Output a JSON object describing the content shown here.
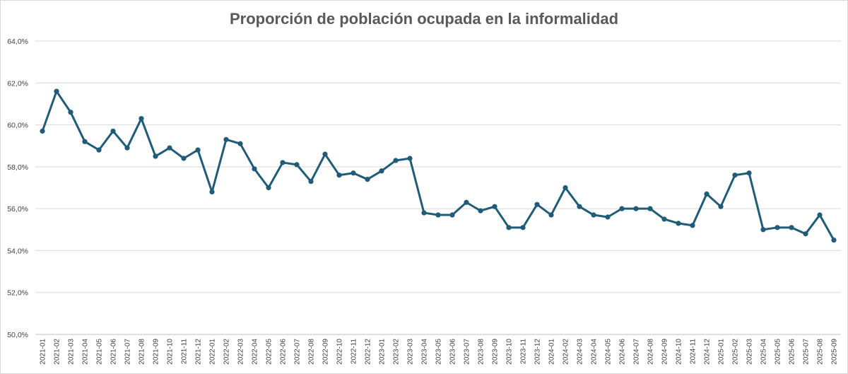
{
  "chart_data": {
    "type": "line",
    "title": "Proporción de población ocupada en la informalidad",
    "xlabel": "",
    "ylabel": "",
    "ylim": [
      50,
      64
    ],
    "yticks": [
      "50,0%",
      "52,0%",
      "54,0%",
      "56,0%",
      "58,0%",
      "60,0%",
      "62,0%",
      "64,0%"
    ],
    "grid": true,
    "line_color": "#1f5c7a",
    "categories": [
      "2021-01",
      "2021-02",
      "2021-03",
      "2021-04",
      "2021-05",
      "2021-06",
      "2021-07",
      "2021-08",
      "2021-09",
      "2021-10",
      "2021-11",
      "2021-12",
      "2022-01",
      "2022-02",
      "2022-03",
      "2022-04",
      "2022-05",
      "2022-06",
      "2022-07",
      "2022-08",
      "2022-09",
      "2022-10",
      "2022-11",
      "2022-12",
      "2023-01",
      "2023-02",
      "2023-03",
      "2023-04",
      "2023-05",
      "2023-06",
      "2023-07",
      "2023-08",
      "2023-09",
      "2023-10",
      "2023-11",
      "2023-12",
      "2024-01",
      "2024-02",
      "2024-03",
      "2024-04",
      "2024-05",
      "2024-06",
      "2024-07",
      "2024-08",
      "2024-09",
      "2024-10",
      "2024-11",
      "2024-12",
      "2025-01",
      "2025-02",
      "2025-03",
      "2025-04",
      "2025-05",
      "2025-06",
      "2025-07",
      "2025-08",
      "2025-09"
    ],
    "values": [
      59.7,
      61.6,
      60.6,
      59.2,
      58.8,
      59.7,
      58.9,
      60.3,
      58.5,
      58.9,
      58.4,
      58.8,
      56.8,
      59.3,
      59.1,
      57.9,
      57.0,
      58.2,
      58.1,
      57.3,
      58.6,
      57.6,
      57.7,
      57.4,
      57.8,
      58.3,
      58.4,
      55.8,
      55.7,
      55.7,
      56.3,
      55.9,
      56.1,
      55.1,
      55.1,
      56.2,
      55.7,
      57.0,
      56.1,
      55.7,
      55.6,
      56.0,
      56.0,
      56.0,
      55.5,
      55.3,
      55.2,
      56.7,
      56.1,
      57.6,
      57.7,
      55.0,
      55.1,
      55.1,
      54.8,
      55.7,
      54.5
    ]
  }
}
